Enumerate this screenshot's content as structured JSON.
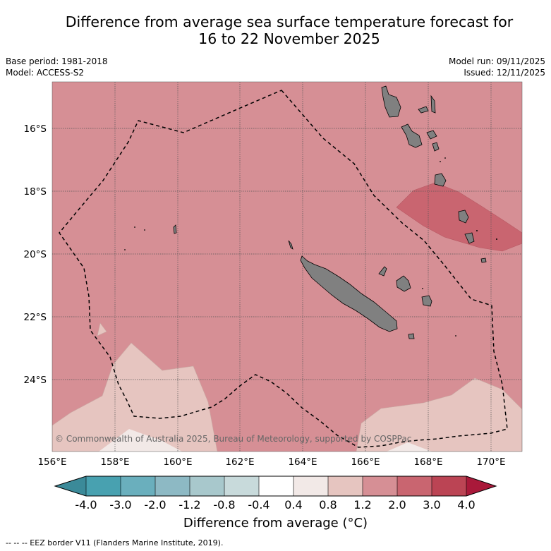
{
  "title_line1": "Difference from average sea surface temperature forecast for",
  "title_line2": "16 to 22 November 2025",
  "base_period": "Base period: 1981-2018",
  "model": "Model: ACCESS-S2",
  "model_run": "Model run: 09/11/2025",
  "issued": "Issued: 12/11/2025",
  "copyright": "© Commonwealth of Australia 2025, Bureau of Meteorology, supported by COSPPac",
  "lat_labels": [
    "16°S",
    "18°S",
    "20°S",
    "22°S",
    "24°S"
  ],
  "lon_labels": [
    "156°E",
    "158°E",
    "160°E",
    "162°E",
    "164°E",
    "166°E",
    "168°E",
    "170°E"
  ],
  "colorbar": {
    "title": "Difference from average (°C)",
    "ticks": [
      "-4.0",
      "-3.0",
      "-2.0",
      "-1.2",
      "-0.8",
      "-0.4",
      "0.4",
      "0.8",
      "1.2",
      "2.0",
      "3.0",
      "4.0"
    ],
    "colors": [
      "#3b8a99",
      "#48a1b0",
      "#6aafbd",
      "#8db9c4",
      "#a8c8cc",
      "#c8dadb",
      "#ffffff",
      "#f2e9e7",
      "#e6c5c0",
      "#d68f95",
      "#c96570",
      "#bb4454",
      "#a9193a"
    ]
  },
  "legend": "--  --  -- EEZ border V11 (Flanders Marine Institute, 2019)."
}
